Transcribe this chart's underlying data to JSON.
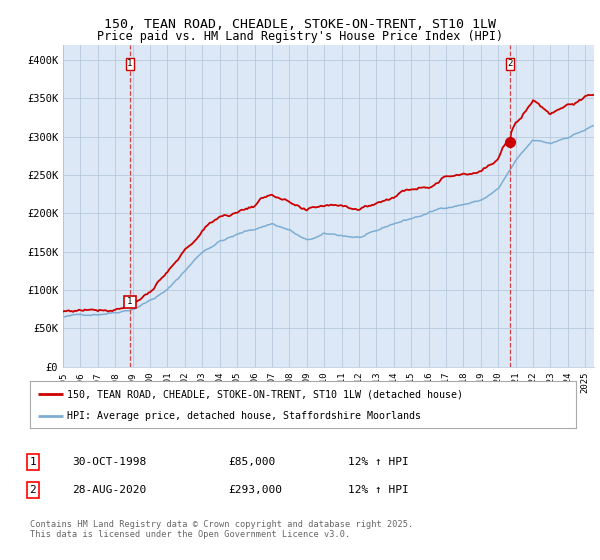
{
  "title_line1": "150, TEAN ROAD, CHEADLE, STOKE-ON-TRENT, ST10 1LW",
  "title_line2": "Price paid vs. HM Land Registry's House Price Index (HPI)",
  "ylabel_ticks": [
    "£0",
    "£50K",
    "£100K",
    "£150K",
    "£200K",
    "£250K",
    "£300K",
    "£350K",
    "£400K"
  ],
  "ytick_values": [
    0,
    50000,
    100000,
    150000,
    200000,
    250000,
    300000,
    350000,
    400000
  ],
  "ylim": [
    0,
    420000
  ],
  "line1_color": "#cc0000",
  "line2_color": "#7eadd4",
  "background_color": "#dce8f5",
  "grid_color": "#b0c4d8",
  "legend_label1": "150, TEAN ROAD, CHEADLE, STOKE-ON-TRENT, ST10 1LW (detached house)",
  "legend_label2": "HPI: Average price, detached house, Staffordshire Moorlands",
  "marker1_date": 1998.83,
  "marker1_value": 85000,
  "marker2_date": 2020.65,
  "marker2_value": 293000,
  "footer": "Contains HM Land Registry data © Crown copyright and database right 2025.\nThis data is licensed under the Open Government Licence v3.0.",
  "xstart": 1995.0,
  "xend": 2025.5
}
